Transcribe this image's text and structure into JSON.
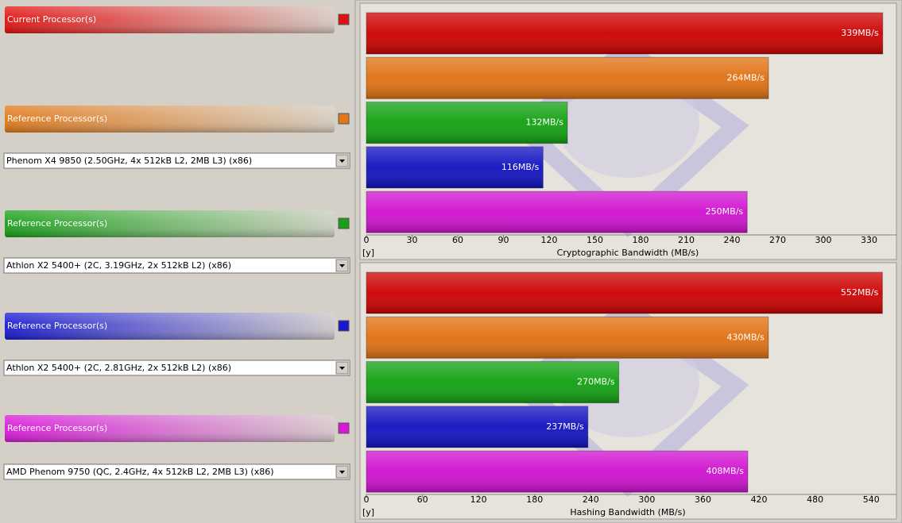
{
  "processors": [
    {
      "label": "Current Processor(s)",
      "color": "#e01010"
    },
    {
      "label": "Reference Processor(s)",
      "color": "#e07818",
      "selection": "Phenom X4 9850 (2.50GHz, 4x 512kB L2, 2MB L3) (x86)"
    },
    {
      "label": "Reference Processor(s)",
      "color": "#18a018",
      "selection": "Athlon X2 5400+ (2C, 3.19GHz, 2x 512kB L2) (x86)"
    },
    {
      "label": "Reference Processor(s)",
      "color": "#1818d0",
      "selection": "Athlon X2 5400+ (2C, 2.81GHz, 2x 512kB L2) (x86)"
    },
    {
      "label": "Reference Processor(s)",
      "color": "#d818d8",
      "selection": "AMD Phenom 9750 (QC, 2.4GHz, 4x 512kB L2, 2MB L3) (x86)"
    }
  ],
  "chart_data": [
    {
      "type": "bar",
      "horizontal": true,
      "x_label": "Cryptographic Bandwidth (MB/s)",
      "unit_label": "[y]",
      "values": [
        339,
        264,
        132,
        116,
        250
      ],
      "value_labels": [
        "339MB/s",
        "264MB/s",
        "132MB/s",
        "116MB/s",
        "250MB/s"
      ],
      "colors": [
        "#cc0000",
        "#e07010",
        "#10a010",
        "#1010c0",
        "#d010d0"
      ],
      "xlim": [
        0,
        348
      ],
      "xticks": [
        0,
        30,
        60,
        90,
        120,
        150,
        180,
        210,
        240,
        270,
        300,
        330
      ]
    },
    {
      "type": "bar",
      "horizontal": true,
      "x_label": "Hashing Bandwidth (MB/s)",
      "unit_label": "[y]",
      "values": [
        552,
        430,
        270,
        237,
        408
      ],
      "value_labels": [
        "552MB/s",
        "430MB/s",
        "270MB/s",
        "237MB/s",
        "408MB/s"
      ],
      "colors": [
        "#cc0000",
        "#e07010",
        "#10a010",
        "#1010c0",
        "#d010d0"
      ],
      "xlim": [
        0,
        567
      ],
      "xticks": [
        0,
        60,
        120,
        180,
        240,
        300,
        360,
        420,
        480,
        540
      ]
    }
  ]
}
